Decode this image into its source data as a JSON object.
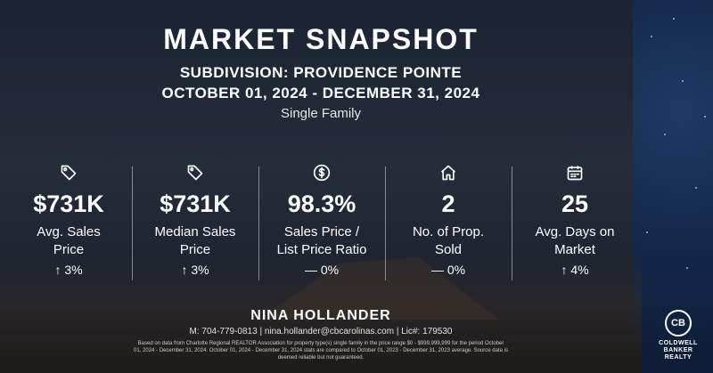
{
  "header": {
    "title": "MARKET SNAPSHOT",
    "subdivision": "SUBDIVISION: PROVIDENCE POINTE",
    "date_range": "OCTOBER 01, 2024 - DECEMBER 31, 2024",
    "property_type": "Single Family"
  },
  "stats": [
    {
      "icon": "price-tag-icon",
      "value": "$731K",
      "label_line1": "Avg. Sales",
      "label_line2": "Price",
      "change": "↑ 3%"
    },
    {
      "icon": "price-tag-icon",
      "value": "$731K",
      "label_line1": "Median Sales",
      "label_line2": "Price",
      "change": "↑ 3%"
    },
    {
      "icon": "dollar-circle-icon",
      "value": "98.3%",
      "label_line1": "Sales Price /",
      "label_line2": "List Price Ratio",
      "change": "— 0%"
    },
    {
      "icon": "house-icon",
      "value": "2",
      "label_line1": "No. of Prop.",
      "label_line2": "Sold",
      "change": "— 0%"
    },
    {
      "icon": "calendar-icon",
      "value": "25",
      "label_line1": "Avg. Days on",
      "label_line2": "Market",
      "change": "↑ 4%"
    }
  ],
  "footer": {
    "agent_name": "NINA HOLLANDER",
    "contact": "M: 704-779-0813 | nina.hollander@cbcarolinas.com | Lic#: 179530",
    "disclaimer": "Based on data from Charlotte Regional REALTOR Association for property type(s) single family in the price range $0 - $999,999,999 for the period October 01, 2024 - December 31, 2024. October 01, 2024 - December 31, 2024 stats are compared to October 01, 2023 - December 31, 2023 average. Source data is deemed reliable but not guaranteed."
  },
  "logo": {
    "mark": "CB",
    "line1": "COLDWELL",
    "line2": "BANKER",
    "line3": "REALTY"
  }
}
